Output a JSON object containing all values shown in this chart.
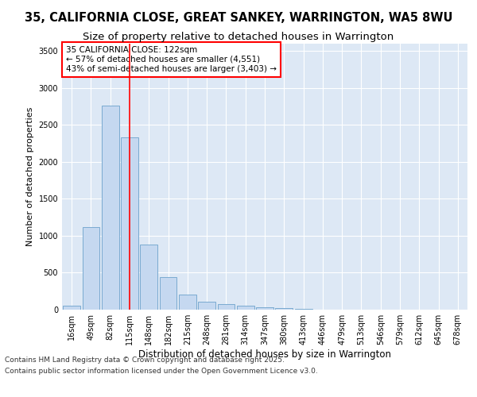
{
  "title": "35, CALIFORNIA CLOSE, GREAT SANKEY, WARRINGTON, WA5 8WU",
  "subtitle": "Size of property relative to detached houses in Warrington",
  "xlabel": "Distribution of detached houses by size in Warrington",
  "ylabel": "Number of detached properties",
  "bar_labels": [
    "16sqm",
    "49sqm",
    "82sqm",
    "115sqm",
    "148sqm",
    "182sqm",
    "215sqm",
    "248sqm",
    "281sqm",
    "314sqm",
    "347sqm",
    "380sqm",
    "413sqm",
    "446sqm",
    "479sqm",
    "513sqm",
    "546sqm",
    "579sqm",
    "612sqm",
    "645sqm",
    "678sqm"
  ],
  "bar_values": [
    50,
    1120,
    2760,
    2330,
    880,
    440,
    200,
    105,
    80,
    55,
    30,
    20,
    10,
    5,
    2,
    0,
    0,
    0,
    0,
    0,
    0
  ],
  "bar_color": "#c5d8f0",
  "bar_edge_color": "#7aaad0",
  "vline_x_index": 3,
  "vline_color": "red",
  "annotation_title": "35 CALIFORNIA CLOSE: 122sqm",
  "annotation_line2": "← 57% of detached houses are smaller (4,551)",
  "annotation_line3": "43% of semi-detached houses are larger (3,403) →",
  "annotation_box_color": "white",
  "annotation_box_edge": "red",
  "ylim": [
    0,
    3600
  ],
  "yticks": [
    0,
    500,
    1000,
    1500,
    2000,
    2500,
    3000,
    3500
  ],
  "fig_bg_color": "#ffffff",
  "plot_bg_color": "#dde8f5",
  "grid_color": "#ffffff",
  "footer_line1": "Contains HM Land Registry data © Crown copyright and database right 2025.",
  "footer_line2": "Contains public sector information licensed under the Open Government Licence v3.0.",
  "title_fontsize": 10.5,
  "subtitle_fontsize": 9.5,
  "xlabel_fontsize": 8.5,
  "ylabel_fontsize": 8,
  "tick_fontsize": 7,
  "annotation_fontsize": 7.5,
  "footer_fontsize": 6.5
}
